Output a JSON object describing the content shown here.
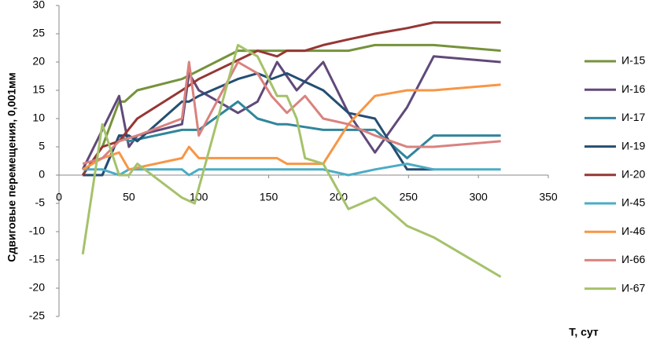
{
  "chart_data": {
    "type": "line",
    "y_label": "Сдвиговые перемещения, 0,001мм",
    "x_label": "Т, сут",
    "xlim": [
      0,
      350
    ],
    "xticks": [
      0,
      50,
      100,
      150,
      200,
      250,
      300,
      350
    ],
    "ylim": [
      -25,
      30
    ],
    "yticks": [
      -25,
      -20,
      -15,
      -10,
      -5,
      0,
      5,
      10,
      15,
      20,
      25,
      30
    ],
    "grid": false,
    "legend": "right",
    "series": [
      {
        "name": "И-15",
        "color": "#76923c",
        "x": [
          17,
          31,
          43,
          47,
          56,
          88,
          128,
          156,
          207,
          226,
          268,
          316
        ],
        "values": [
          0,
          5,
          13,
          13,
          15,
          17,
          22,
          22,
          22,
          23,
          23,
          22
        ]
      },
      {
        "name": "И-16",
        "color": "#60497a",
        "x": [
          17,
          43,
          50,
          56,
          88,
          93,
          100,
          128,
          142,
          156,
          170,
          189,
          207,
          226,
          249,
          268,
          316
        ],
        "values": [
          1,
          14,
          5,
          7,
          9,
          18,
          15,
          11,
          13,
          20,
          15,
          20,
          11,
          4,
          12,
          21,
          20
        ]
      },
      {
        "name": "И-17",
        "color": "#31859c",
        "x": [
          17,
          31,
          43,
          50,
          88,
          100,
          128,
          142,
          156,
          163,
          189,
          226,
          249,
          268,
          316
        ],
        "values": [
          0,
          0,
          7,
          6,
          8,
          8,
          13,
          10,
          9,
          9,
          8,
          8,
          3,
          7,
          7
        ]
      },
      {
        "name": "И-19",
        "color": "#254e72",
        "x": [
          17,
          31,
          43,
          50,
          56,
          88,
          93,
          100,
          128,
          142,
          152,
          163,
          189,
          207,
          226,
          249,
          268
        ],
        "values": [
          0,
          0,
          7,
          7,
          6,
          13,
          13,
          14,
          17,
          18,
          17,
          18,
          15,
          11,
          10,
          1,
          1
        ]
      },
      {
        "name": "И-20",
        "color": "#953735",
        "x": [
          17,
          31,
          43,
          56,
          88,
          100,
          142,
          156,
          163,
          176,
          189,
          207,
          226,
          249,
          268,
          316
        ],
        "values": [
          0,
          5,
          6,
          10,
          15,
          17,
          22,
          21,
          22,
          22,
          23,
          24,
          25,
          26,
          27,
          27
        ]
      },
      {
        "name": "И-45",
        "color": "#4bacc6",
        "x": [
          17,
          31,
          43,
          50,
          88,
          93,
          100,
          189,
          207,
          226,
          249,
          268,
          316
        ],
        "values": [
          1,
          1,
          0,
          1,
          1,
          0,
          1,
          1,
          0,
          1,
          2,
          1,
          1
        ]
      },
      {
        "name": "И-46",
        "color": "#f79646",
        "x": [
          17,
          31,
          43,
          50,
          88,
          93,
          100,
          156,
          163,
          189,
          207,
          226,
          249,
          268,
          316
        ],
        "values": [
          1,
          3,
          4,
          1,
          3,
          5,
          3,
          3,
          2,
          2,
          9,
          14,
          15,
          15,
          16
        ]
      },
      {
        "name": "И-66",
        "color": "#d9827f",
        "x": [
          17,
          31,
          43,
          56,
          88,
          93,
          100,
          128,
          142,
          152,
          163,
          176,
          189,
          207,
          226,
          249,
          268,
          316
        ],
        "values": [
          2,
          3,
          6,
          7,
          10,
          20,
          7,
          20,
          18,
          14,
          11,
          14,
          10,
          9,
          7,
          5,
          5,
          6
        ]
      },
      {
        "name": "И-67",
        "color": "#a5c26a",
        "x": [
          17,
          31,
          43,
          50,
          56,
          88,
          97,
          128,
          142,
          156,
          163,
          170,
          176,
          189,
          207,
          226,
          249,
          268,
          316
        ],
        "values": [
          -14,
          9,
          0,
          0,
          2,
          -4,
          -5,
          23,
          21,
          14,
          14,
          10,
          3,
          2,
          -6,
          -4,
          -9,
          -11,
          -18
        ]
      }
    ]
  }
}
